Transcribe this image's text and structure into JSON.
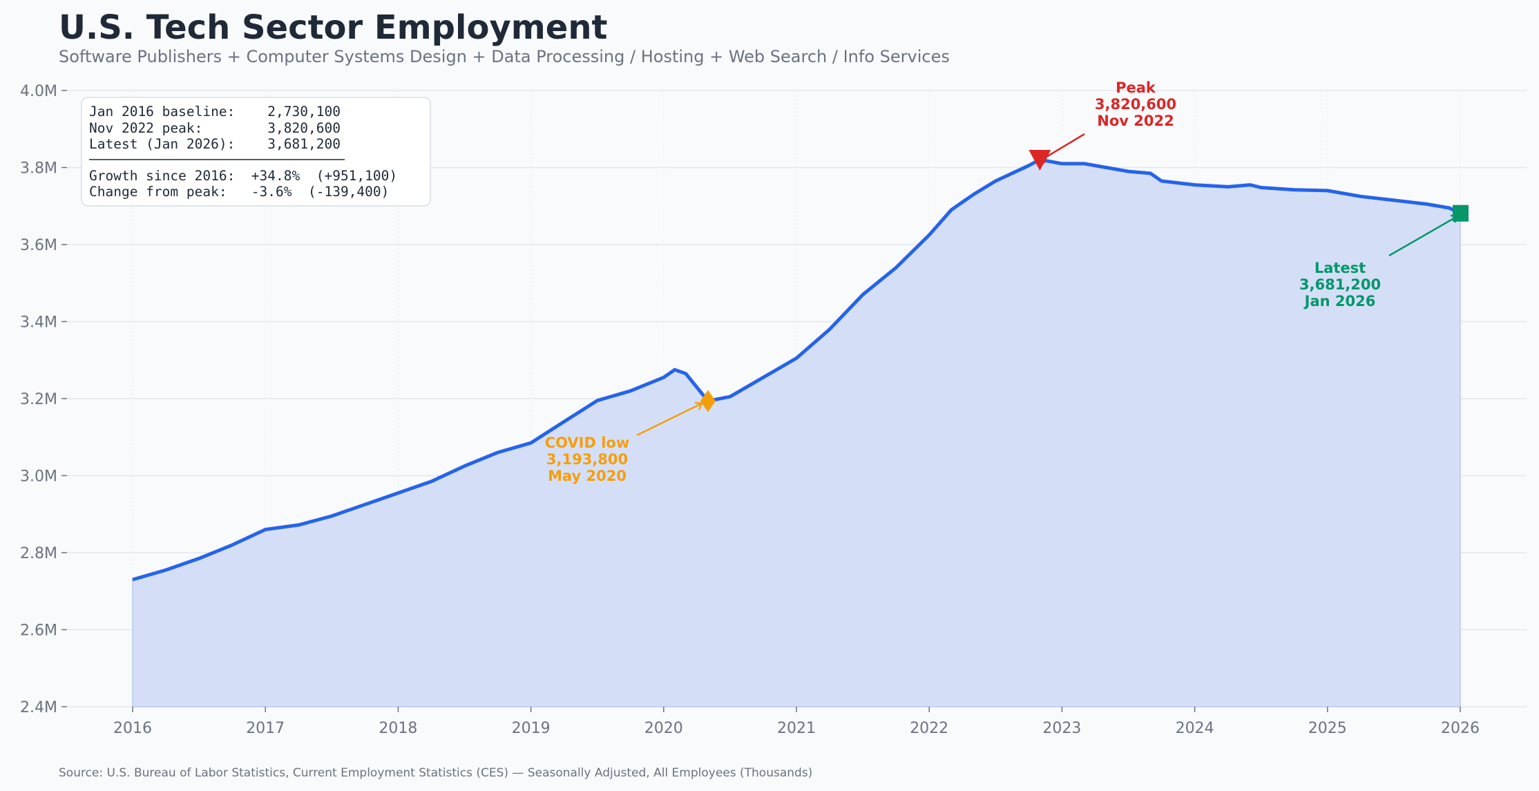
{
  "title": "U.S. Tech Sector Employment",
  "subtitle": "Software Publishers  +  Computer Systems Design  +  Data Processing / Hosting  +  Web Search / Info Services",
  "source": "Source: U.S. Bureau of Labor Statistics, Current Employment Statistics (CES) — Seasonally Adjusted, All Employees (Thousands)",
  "stats_box": {
    "lines": [
      "Jan 2016 baseline:    2,730,100",
      "Nov 2022 peak:        3,820,600",
      "Latest (Jan 2026):    3,681,200",
      "Growth since 2016:  +34.8%  (+951,100)",
      "Change from peak:   -3.6%  (-139,400)"
    ]
  },
  "colors": {
    "line": "#2563eb",
    "fill": "#d4dff7",
    "peak": "#dc2626",
    "covid": "#f59e0b",
    "latest": "#059669",
    "background": "#f8fafc"
  },
  "chart_data": {
    "type": "area",
    "title": "U.S. Tech Sector Employment",
    "xlabel": "",
    "ylabel": "",
    "xlim": [
      "2015-07",
      "2026-07"
    ],
    "ylim": [
      2.4,
      4.0
    ],
    "y_unit": "millions",
    "grid": true,
    "x_ticks": [
      "2016",
      "2017",
      "2018",
      "2019",
      "2020",
      "2021",
      "2022",
      "2023",
      "2024",
      "2025",
      "2026"
    ],
    "y_ticks": [
      "2.4M",
      "2.6M",
      "2.8M",
      "3.0M",
      "3.2M",
      "3.4M",
      "3.6M",
      "3.8M",
      "4.0M"
    ],
    "series": [
      {
        "x": [
          "2016-01",
          "2016-04",
          "2016-07",
          "2016-10",
          "2017-01",
          "2017-04",
          "2017-07",
          "2017-10",
          "2018-01",
          "2018-04",
          "2018-07",
          "2018-10",
          "2019-01",
          "2019-04",
          "2019-07",
          "2019-10",
          "2020-01",
          "2020-02",
          "2020-03",
          "2020-05",
          "2020-07",
          "2020-10",
          "2021-01",
          "2021-04",
          "2021-07",
          "2021-10",
          "2022-01",
          "2022-03",
          "2022-05",
          "2022-07",
          "2022-10",
          "2022-11",
          "2023-01",
          "2023-03",
          "2023-05",
          "2023-07",
          "2023-09",
          "2023-10",
          "2024-01",
          "2024-04",
          "2024-06",
          "2024-07",
          "2024-10",
          "2025-01",
          "2025-04",
          "2025-07",
          "2025-10",
          "2025-12",
          "2026-01"
        ],
        "values": [
          2.7301,
          2.755,
          2.785,
          2.82,
          2.86,
          2.872,
          2.895,
          2.925,
          2.955,
          2.985,
          3.025,
          3.06,
          3.085,
          3.14,
          3.195,
          3.22,
          3.255,
          3.275,
          3.265,
          3.1938,
          3.205,
          3.255,
          3.305,
          3.38,
          3.47,
          3.54,
          3.625,
          3.69,
          3.73,
          3.765,
          3.805,
          3.8206,
          3.81,
          3.81,
          3.8,
          3.79,
          3.785,
          3.765,
          3.755,
          3.75,
          3.755,
          3.748,
          3.742,
          3.74,
          3.725,
          3.715,
          3.705,
          3.695,
          3.6812
        ]
      }
    ],
    "annotations": [
      {
        "label": [
          "Peak",
          "3,820,600",
          "Nov 2022"
        ],
        "x": "2022-11",
        "y": 3.8206,
        "marker": "triangle-down",
        "color": "#dc2626"
      },
      {
        "label": [
          "COVID low",
          "3,193,800",
          "May 2020"
        ],
        "x": "2020-05",
        "y": 3.1938,
        "marker": "diamond",
        "color": "#f59e0b"
      },
      {
        "label": [
          "Latest",
          "3,681,200",
          "Jan 2026"
        ],
        "x": "2026-01",
        "y": 3.6812,
        "marker": "square",
        "color": "#059669"
      }
    ]
  }
}
